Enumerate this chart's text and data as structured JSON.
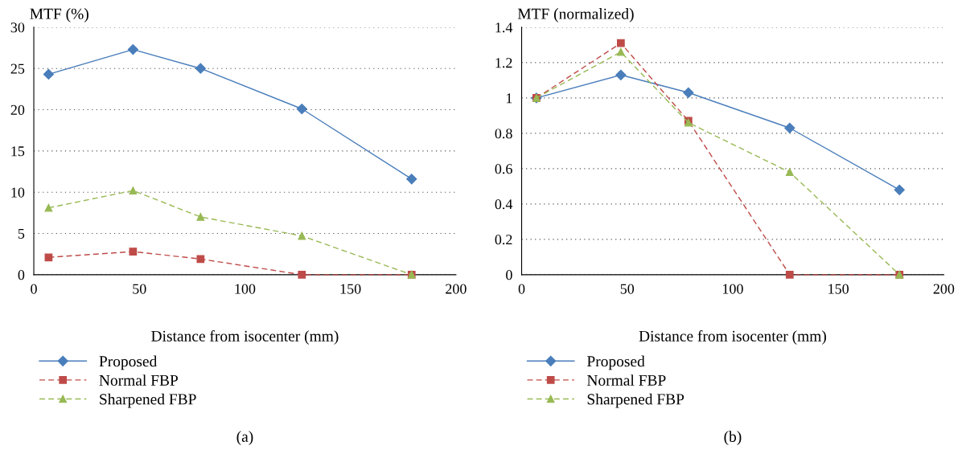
{
  "chart_data": [
    {
      "type": "line",
      "x": [
        7,
        47,
        79,
        127,
        179
      ],
      "xlim": [
        0,
        200
      ],
      "xticks": [
        0,
        50,
        100,
        150,
        200
      ],
      "ylim": [
        0,
        30
      ],
      "yticks": [
        0,
        5,
        10,
        15,
        20,
        25,
        30
      ],
      "xlabel": "Distance from isocenter (mm)",
      "ylabel": "MTF (%)",
      "grid": "y",
      "legend": "bottom",
      "annotations": [
        "(a)"
      ],
      "series": [
        {
          "name": "Proposed",
          "color": "#4a7ebb",
          "values": [
            24.3,
            27.3,
            25.0,
            20.1,
            11.6
          ],
          "marker": "diamond",
          "line_style": "solid"
        },
        {
          "name": "Normal FBP",
          "color": "#be4b48",
          "values": [
            2.1,
            2.8,
            1.9,
            0,
            0
          ],
          "marker": "square",
          "line_style": "dashed"
        },
        {
          "name": "Sharpened FBP",
          "color": "#98b954",
          "values": [
            8.1,
            10.2,
            7.0,
            4.7,
            0
          ],
          "marker": "triangle",
          "line_style": "dashed"
        }
      ]
    },
    {
      "type": "line",
      "x": [
        7,
        47,
        79,
        127,
        179
      ],
      "xlim": [
        0,
        200
      ],
      "xticks": [
        0,
        50,
        100,
        150,
        200
      ],
      "ylim": [
        0,
        1.4
      ],
      "yticks": [
        0,
        0.2,
        0.4,
        0.6,
        0.8,
        1,
        1.2,
        1.4
      ],
      "xlabel": "Distance from isocenter (mm)",
      "ylabel": "MTF (normalized)",
      "grid": "y",
      "legend": "bottom",
      "annotations": [
        "(b)"
      ],
      "series": [
        {
          "name": "Proposed",
          "color": "#4a7ebb",
          "values": [
            1.0,
            1.13,
            1.03,
            0.83,
            0.48
          ],
          "marker": "diamond",
          "line_style": "solid"
        },
        {
          "name": "Normal FBP",
          "color": "#be4b48",
          "values": [
            1.0,
            1.31,
            0.87,
            0,
            0
          ],
          "marker": "square",
          "line_style": "dashed"
        },
        {
          "name": "Sharpened FBP",
          "color": "#98b954",
          "values": [
            1.0,
            1.26,
            0.86,
            0.58,
            0
          ],
          "marker": "triangle",
          "line_style": "dashed"
        }
      ]
    }
  ]
}
